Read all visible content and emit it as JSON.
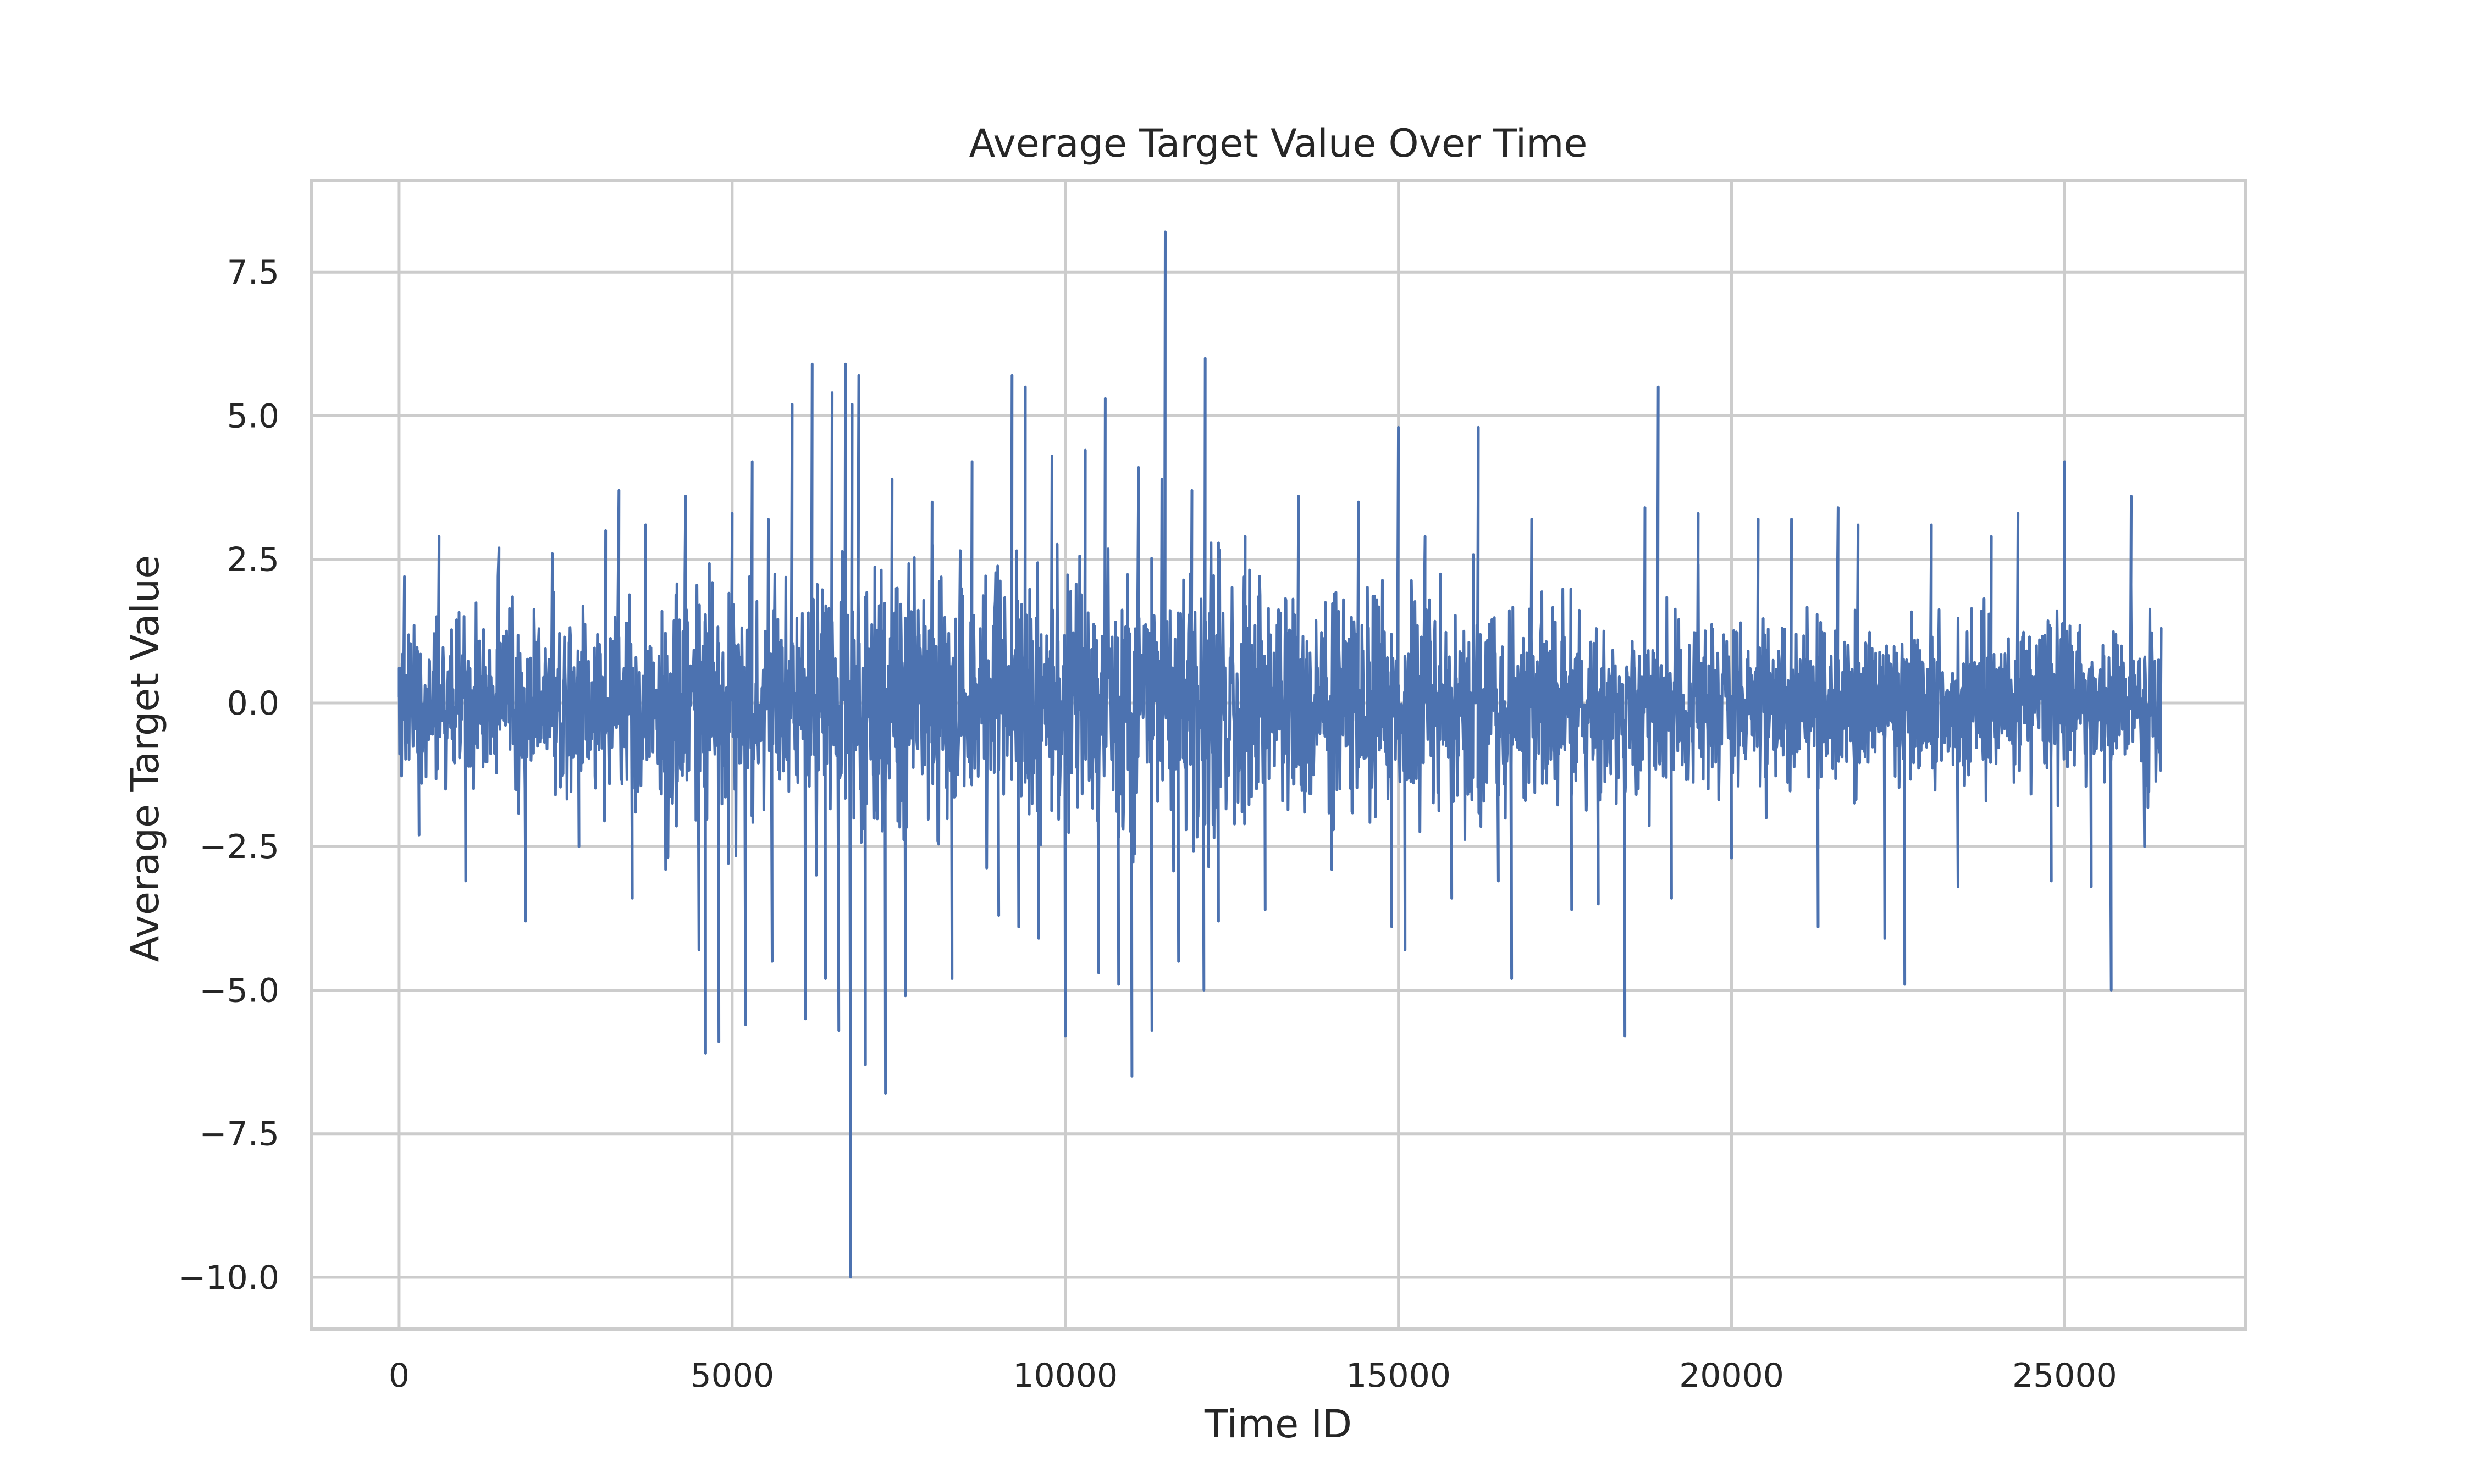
{
  "chart_data": {
    "type": "line",
    "title": "Average Target Value Over Time",
    "xlabel": "Time ID",
    "ylabel": "Average Target Value",
    "xlim": [
      -1320,
      27720
    ],
    "ylim": [
      -10.9,
      9.1
    ],
    "x_ticks": [
      {
        "value": 0,
        "label": "0"
      },
      {
        "value": 5000,
        "label": "5000"
      },
      {
        "value": 10000,
        "label": "10000"
      },
      {
        "value": 15000,
        "label": "15000"
      },
      {
        "value": 20000,
        "label": "20000"
      },
      {
        "value": 25000,
        "label": "25000"
      }
    ],
    "y_ticks": [
      {
        "value": 7.5,
        "label": "7.5"
      },
      {
        "value": 5.0,
        "label": "5.0"
      },
      {
        "value": 2.5,
        "label": "2.5"
      },
      {
        "value": 0.0,
        "label": "0.0"
      },
      {
        "value": -2.5,
        "label": "−2.5"
      },
      {
        "value": -5.0,
        "label": "−5.0"
      },
      {
        "value": -7.5,
        "label": "−7.5"
      },
      {
        "value": -10.0,
        "label": "−10.0"
      }
    ],
    "grid": true,
    "series": [
      {
        "color": "#4c72b0",
        "x": [
          0,
          80,
          300,
          600,
          1000,
          1500,
          1900,
          2300,
          2700,
          3100,
          3300,
          3500,
          3700,
          4000,
          4300,
          4500,
          4600,
          4800,
          5000,
          5200,
          5300,
          5600,
          5900,
          6100,
          6200,
          6400,
          6500,
          6600,
          6700,
          6780,
          6800,
          6900,
          7000,
          7300,
          7400,
          7600,
          8000,
          8300,
          8600,
          9000,
          9200,
          9300,
          9400,
          9600,
          9800,
          10000,
          10300,
          10500,
          10600,
          10800,
          11000,
          11100,
          11300,
          11450,
          11500,
          11700,
          11900,
          12080,
          12100,
          12300,
          12700,
          13000,
          13500,
          14000,
          14400,
          14900,
          15000,
          15100,
          15400,
          15800,
          16200,
          16500,
          16700,
          17000,
          17600,
          18000,
          18400,
          18700,
          18900,
          19100,
          19500,
          20000,
          20400,
          20900,
          21300,
          21600,
          21900,
          22300,
          22600,
          23000,
          23400,
          23900,
          24300,
          24800,
          25000,
          25400,
          25700,
          26000,
          26200,
          26450
        ],
        "y": [
          0.1,
          2.2,
          -2.3,
          2.9,
          -3.1,
          2.7,
          -3.8,
          2.6,
          -2.5,
          3.0,
          3.7,
          -3.4,
          3.1,
          -2.9,
          3.6,
          -4.3,
          -6.1,
          -5.9,
          3.3,
          -5.6,
          4.2,
          -4.5,
          5.2,
          -5.5,
          5.9,
          -4.8,
          5.4,
          -5.7,
          5.9,
          -10.0,
          5.2,
          5.7,
          -6.3,
          -6.8,
          3.9,
          -5.1,
          3.5,
          -4.8,
          4.2,
          -3.7,
          5.7,
          -3.9,
          5.5,
          -4.1,
          4.3,
          -5.8,
          4.4,
          -4.7,
          5.3,
          -4.9,
          -6.5,
          4.1,
          -5.7,
          3.9,
          8.2,
          -4.5,
          3.7,
          -5.0,
          6.0,
          -3.8,
          2.9,
          -3.6,
          3.6,
          -2.9,
          3.5,
          -3.9,
          4.8,
          -4.3,
          2.9,
          -3.4,
          4.8,
          -3.1,
          -4.8,
          3.2,
          -3.6,
          -3.5,
          -5.8,
          3.4,
          5.5,
          -3.4,
          3.3,
          -2.7,
          3.2,
          3.2,
          -3.9,
          3.4,
          3.1,
          -4.1,
          -4.9,
          3.1,
          -3.2,
          2.9,
          3.3,
          -3.1,
          4.2,
          -3.2,
          -5.0,
          3.6,
          -2.5,
          1.3
        ]
      }
    ]
  }
}
